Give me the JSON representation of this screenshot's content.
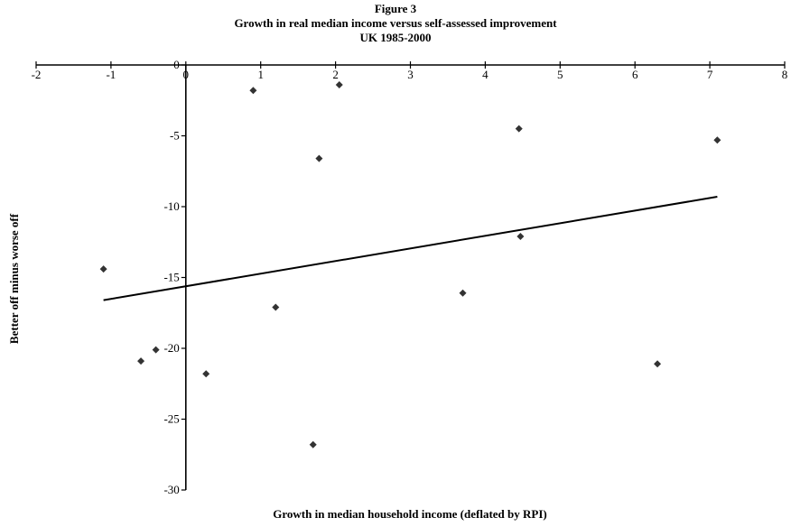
{
  "chart_data": {
    "type": "scatter",
    "title": [
      "Figure 3",
      "Growth in real median income versus self-assessed improvement",
      "UK 1985-2000"
    ],
    "xlabel": "Growth in median household income (deflated by RPI)",
    "ylabel": "Better off minus worse off",
    "xlim": [
      -2,
      8
    ],
    "ylim": [
      -30,
      0
    ],
    "xticks": [
      -2,
      -1,
      0,
      1,
      2,
      3,
      4,
      5,
      6,
      7,
      8
    ],
    "yticks": [
      0,
      -5,
      -10,
      -15,
      -20,
      -25,
      -30
    ],
    "xtick_labels": [
      "-2",
      "-1",
      "0",
      "1",
      "2",
      "3",
      "4",
      "5",
      "6",
      "7",
      "8"
    ],
    "ytick_labels": [
      "0",
      "-5",
      "-10",
      "-15",
      "-20",
      "-25",
      "-30"
    ],
    "points": [
      {
        "x": -1.1,
        "y": -14.4
      },
      {
        "x": -0.6,
        "y": -20.9
      },
      {
        "x": -0.4,
        "y": -20.1
      },
      {
        "x": 0.27,
        "y": -21.8
      },
      {
        "x": 0.9,
        "y": -1.8
      },
      {
        "x": 1.2,
        "y": -17.1
      },
      {
        "x": 1.7,
        "y": -26.8
      },
      {
        "x": 1.78,
        "y": -6.6
      },
      {
        "x": 2.05,
        "y": -1.4
      },
      {
        "x": 3.7,
        "y": -16.1
      },
      {
        "x": 4.45,
        "y": -4.5
      },
      {
        "x": 4.47,
        "y": -12.1
      },
      {
        "x": 6.3,
        "y": -21.1
      },
      {
        "x": 7.1,
        "y": -5.3
      }
    ],
    "trendline": {
      "x": [
        -1.1,
        7.1
      ],
      "y": [
        -16.6,
        -9.3
      ]
    },
    "marker": "diamond",
    "marker_color": "#333333",
    "line_color": "#000000",
    "grid": false,
    "legend": false
  }
}
